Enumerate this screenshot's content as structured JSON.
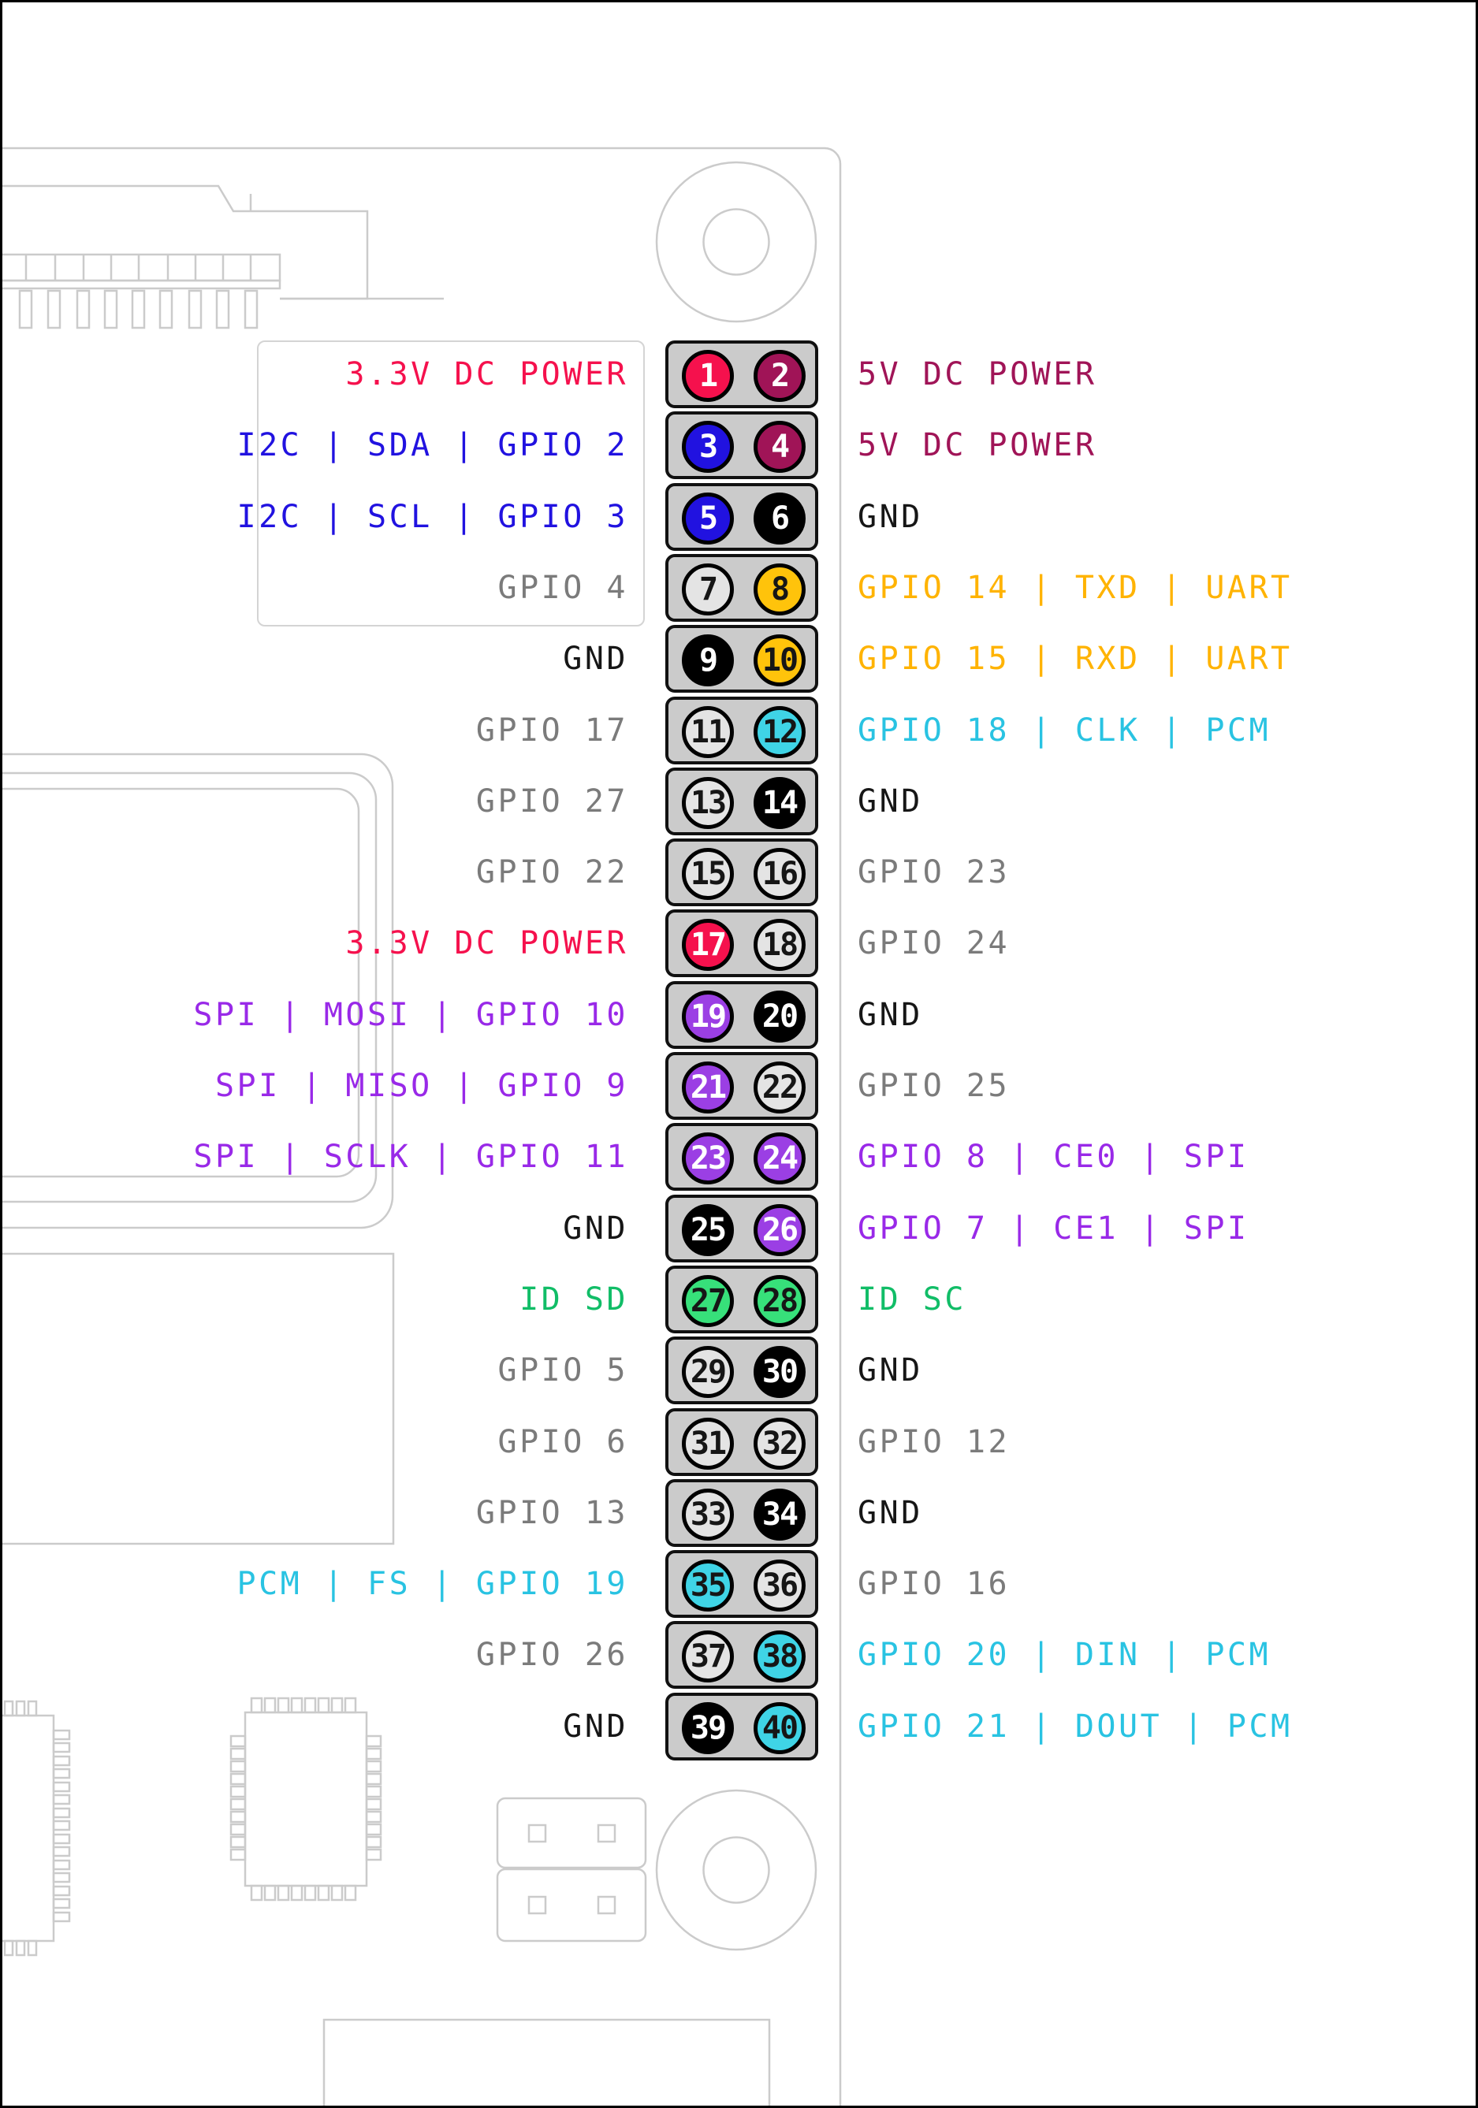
{
  "palette": {
    "text": {
      "red": "#f5114d",
      "maroon": "#a01457",
      "blue": "#2112e0",
      "black": "#161616",
      "gray": "#7b7b7b",
      "orange": "#ffb302",
      "cyan": "#29c3e2",
      "purple": "#9929e8",
      "green": "#11bd67"
    },
    "pin": {
      "red": "#f5114d",
      "maroon": "#a01457",
      "blue": "#2112e0",
      "black": "#000000",
      "white": "#e4e4e4",
      "yellow": "#ffc30b",
      "cyan": "#3fd4e6",
      "purple": "#9b3fe4",
      "green": "#37e07a"
    },
    "pin_dark_text": [
      "white",
      "yellow",
      "cyan",
      "green"
    ],
    "board_line": "#cbcbcb",
    "header_fill": "#cbcbcb"
  },
  "board": {
    "icons": [
      "board-outline",
      "ribbon-connector-icon",
      "mounting-hole-top-icon",
      "mounting-hole-bottom-icon",
      "display-connector-icon",
      "camera-connector-icon",
      "ic-left-icon",
      "ic-qfn-icon",
      "jumper-block-icon",
      "bottom-port-icon"
    ]
  },
  "pinout": {
    "rows": [
      {
        "left": {
          "text": "3.3V DC POWER",
          "color": "red"
        },
        "right": {
          "text": "5V DC POWER",
          "color": "maroon"
        },
        "pins": [
          {
            "n": "1",
            "color": "red"
          },
          {
            "n": "2",
            "color": "maroon"
          }
        ]
      },
      {
        "left": {
          "text": "I2C | SDA | GPIO 2",
          "color": "blue"
        },
        "right": {
          "text": "5V DC POWER",
          "color": "maroon"
        },
        "pins": [
          {
            "n": "3",
            "color": "blue"
          },
          {
            "n": "4",
            "color": "maroon"
          }
        ]
      },
      {
        "left": {
          "text": "I2C | SCL | GPIO 3",
          "color": "blue"
        },
        "right": {
          "text": "GND",
          "color": "black"
        },
        "pins": [
          {
            "n": "5",
            "color": "blue"
          },
          {
            "n": "6",
            "color": "black"
          }
        ]
      },
      {
        "left": {
          "text": "GPIO 4",
          "color": "gray"
        },
        "right": {
          "text": "GPIO 14 | TXD | UART",
          "color": "orange"
        },
        "pins": [
          {
            "n": "7",
            "color": "white"
          },
          {
            "n": "8",
            "color": "yellow"
          }
        ]
      },
      {
        "left": {
          "text": "GND",
          "color": "black"
        },
        "right": {
          "text": "GPIO 15 | RXD | UART",
          "color": "orange"
        },
        "pins": [
          {
            "n": "9",
            "color": "black"
          },
          {
            "n": "10",
            "color": "yellow"
          }
        ]
      },
      {
        "left": {
          "text": "GPIO 17",
          "color": "gray"
        },
        "right": {
          "text": "GPIO 18 | CLK | PCM",
          "color": "cyan"
        },
        "pins": [
          {
            "n": "11",
            "color": "white"
          },
          {
            "n": "12",
            "color": "cyan"
          }
        ]
      },
      {
        "left": {
          "text": "GPIO 27",
          "color": "gray"
        },
        "right": {
          "text": "GND",
          "color": "black"
        },
        "pins": [
          {
            "n": "13",
            "color": "white"
          },
          {
            "n": "14",
            "color": "black"
          }
        ]
      },
      {
        "left": {
          "text": "GPIO 22",
          "color": "gray"
        },
        "right": {
          "text": "GPIO 23",
          "color": "gray"
        },
        "pins": [
          {
            "n": "15",
            "color": "white"
          },
          {
            "n": "16",
            "color": "white"
          }
        ]
      },
      {
        "left": {
          "text": "3.3V DC POWER",
          "color": "red"
        },
        "right": {
          "text": "GPIO 24",
          "color": "gray"
        },
        "pins": [
          {
            "n": "17",
            "color": "red"
          },
          {
            "n": "18",
            "color": "white"
          }
        ]
      },
      {
        "left": {
          "text": "SPI | MOSI | GPIO 10",
          "color": "purple"
        },
        "right": {
          "text": "GND",
          "color": "black"
        },
        "pins": [
          {
            "n": "19",
            "color": "purple"
          },
          {
            "n": "20",
            "color": "black"
          }
        ]
      },
      {
        "left": {
          "text": "SPI | MISO | GPIO 9",
          "color": "purple"
        },
        "right": {
          "text": "GPIO 25",
          "color": "gray"
        },
        "pins": [
          {
            "n": "21",
            "color": "purple"
          },
          {
            "n": "22",
            "color": "white"
          }
        ]
      },
      {
        "left": {
          "text": "SPI | SCLK | GPIO 11",
          "color": "purple"
        },
        "right": {
          "text": "GPIO 8 | CE0 | SPI",
          "color": "purple"
        },
        "pins": [
          {
            "n": "23",
            "color": "purple"
          },
          {
            "n": "24",
            "color": "purple"
          }
        ]
      },
      {
        "left": {
          "text": "GND",
          "color": "black"
        },
        "right": {
          "text": "GPIO 7 | CE1 | SPI",
          "color": "purple"
        },
        "pins": [
          {
            "n": "25",
            "color": "black"
          },
          {
            "n": "26",
            "color": "purple"
          }
        ]
      },
      {
        "left": {
          "text": "ID SD",
          "color": "green"
        },
        "right": {
          "text": "ID SC",
          "color": "green"
        },
        "pins": [
          {
            "n": "27",
            "color": "green"
          },
          {
            "n": "28",
            "color": "green"
          }
        ]
      },
      {
        "left": {
          "text": "GPIO 5",
          "color": "gray"
        },
        "right": {
          "text": "GND",
          "color": "black"
        },
        "pins": [
          {
            "n": "29",
            "color": "white"
          },
          {
            "n": "30",
            "color": "black"
          }
        ]
      },
      {
        "left": {
          "text": "GPIO 6",
          "color": "gray"
        },
        "right": {
          "text": "GPIO 12",
          "color": "gray"
        },
        "pins": [
          {
            "n": "31",
            "color": "white"
          },
          {
            "n": "32",
            "color": "white"
          }
        ]
      },
      {
        "left": {
          "text": "GPIO 13",
          "color": "gray"
        },
        "right": {
          "text": "GND",
          "color": "black"
        },
        "pins": [
          {
            "n": "33",
            "color": "white"
          },
          {
            "n": "34",
            "color": "black"
          }
        ]
      },
      {
        "left": {
          "text": "PCM | FS | GPIO 19",
          "color": "cyan"
        },
        "right": {
          "text": "GPIO 16",
          "color": "gray"
        },
        "pins": [
          {
            "n": "35",
            "color": "cyan"
          },
          {
            "n": "36",
            "color": "white"
          }
        ]
      },
      {
        "left": {
          "text": "GPIO 26",
          "color": "gray"
        },
        "right": {
          "text": "GPIO 20 | DIN | PCM",
          "color": "cyan"
        },
        "pins": [
          {
            "n": "37",
            "color": "white"
          },
          {
            "n": "38",
            "color": "cyan"
          }
        ]
      },
      {
        "left": {
          "text": "GND",
          "color": "black"
        },
        "right": {
          "text": "GPIO 21 | DOUT | PCM",
          "color": "cyan"
        },
        "pins": [
          {
            "n": "39",
            "color": "black"
          },
          {
            "n": "40",
            "color": "cyan"
          }
        ]
      }
    ]
  }
}
